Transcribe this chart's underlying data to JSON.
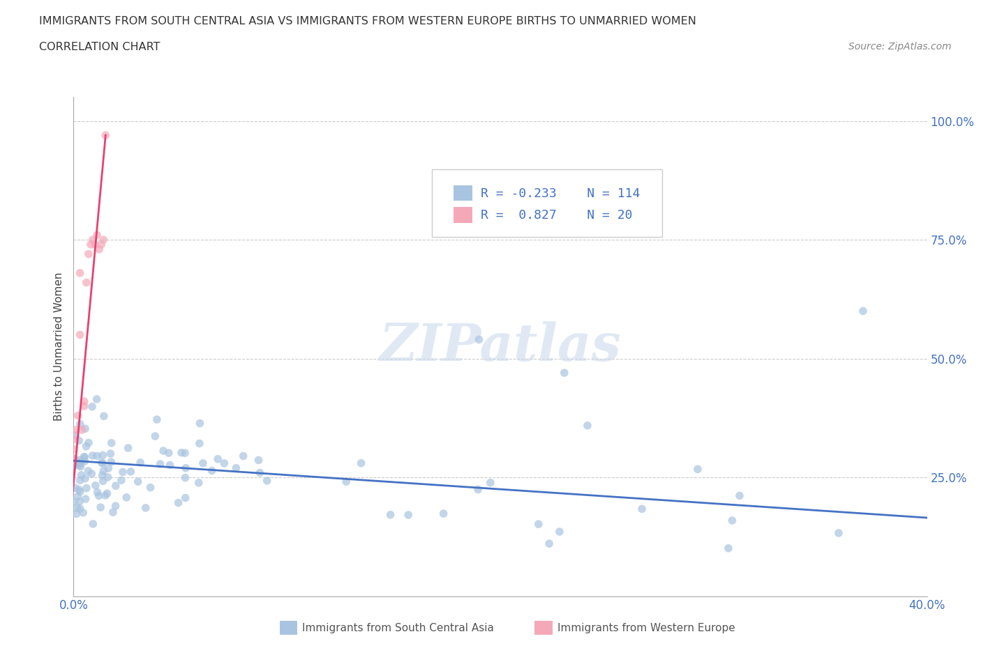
{
  "title_line1": "IMMIGRANTS FROM SOUTH CENTRAL ASIA VS IMMIGRANTS FROM WESTERN EUROPE BIRTHS TO UNMARRIED WOMEN",
  "title_line2": "CORRELATION CHART",
  "source_text": "Source: ZipAtlas.com",
  "ylabel": "Births to Unmarried Women",
  "xlim": [
    0.0,
    0.4
  ],
  "ylim": [
    0.0,
    1.05
  ],
  "xtick_labels": [
    "0.0%",
    "",
    "",
    "",
    "40.0%"
  ],
  "xtick_values": [
    0.0,
    0.1,
    0.2,
    0.3,
    0.4
  ],
  "ytick_labels": [
    "25.0%",
    "50.0%",
    "75.0%",
    "100.0%"
  ],
  "ytick_values": [
    0.25,
    0.5,
    0.75,
    1.0
  ],
  "watermark": "ZIPatlas",
  "blue_color": "#a8c4e0",
  "pink_color": "#f4a8b8",
  "blue_line_color": "#4472c4",
  "pink_line_color": "#e84070",
  "legend_R1": "-0.233",
  "legend_N1": "114",
  "legend_R2": "0.827",
  "legend_N2": "20",
  "blue_seed": 42,
  "pink_seed": 99
}
